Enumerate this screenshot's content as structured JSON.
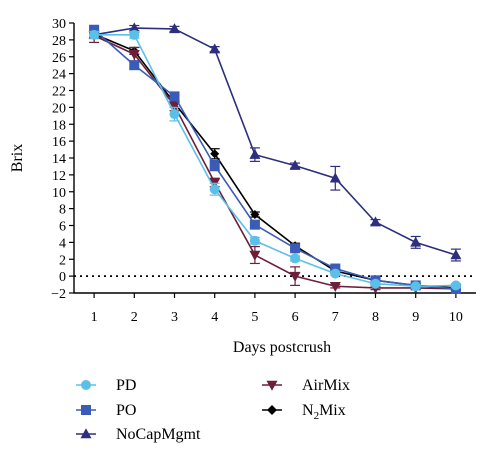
{
  "chart_data": {
    "type": "line",
    "xlabel": "Days postcrush",
    "ylabel": "Brix",
    "x": [
      1,
      2,
      3,
      4,
      5,
      6,
      7,
      8,
      9,
      10
    ],
    "xlim": [
      0.5,
      10.5
    ],
    "ylim": [
      -2,
      30
    ],
    "yticks": [
      -2,
      0,
      2,
      4,
      6,
      8,
      10,
      12,
      14,
      16,
      18,
      20,
      22,
      24,
      26,
      28,
      30
    ],
    "xticks": [
      1,
      2,
      3,
      4,
      5,
      6,
      7,
      8,
      9,
      10
    ],
    "reference_line": {
      "y": 0,
      "style": "dotted"
    },
    "grid": false,
    "legend_position": "bottom",
    "series": [
      {
        "name": "PD",
        "color": "#5bc0e8",
        "marker": "circle",
        "values": [
          28.6,
          28.6,
          19.2,
          10.3,
          4.2,
          2.1,
          0.3,
          -0.9,
          -1.2,
          -1.1
        ],
        "errors": [
          0.4,
          0.4,
          0.8,
          0.7,
          0.4,
          0.3,
          0.2,
          0.2,
          0.2,
          0.2
        ]
      },
      {
        "name": "PO",
        "color": "#3a5bb7",
        "marker": "square",
        "values": [
          29.2,
          25.0,
          21.3,
          13.1,
          6.1,
          3.3,
          0.9,
          -0.5,
          -1.1,
          -1.5
        ],
        "errors": [
          0.4,
          0.4,
          0.5,
          0.6,
          0.4,
          0.3,
          0.3,
          0.2,
          0.2,
          0.2
        ]
      },
      {
        "name": "NoCapMgmt",
        "color": "#2d2f7e",
        "marker": "triangle-up",
        "values": [
          28.6,
          29.4,
          29.3,
          26.9,
          14.4,
          13.1,
          11.6,
          6.4,
          4.0,
          2.5
        ],
        "errors": [
          0.3,
          0.3,
          0.3,
          0.3,
          0.8,
          0.3,
          1.4,
          0.3,
          0.7,
          0.7
        ]
      },
      {
        "name": "AirMix",
        "color": "#6e1e3a",
        "marker": "triangle-down",
        "values": [
          28.5,
          26.3,
          20.2,
          11.1,
          2.5,
          0.0,
          -1.2,
          -1.4,
          -1.4,
          -1.5
        ],
        "errors": [
          0.8,
          0.8,
          0.6,
          0.5,
          1.0,
          1.1,
          0.2,
          0.2,
          0.2,
          0.2
        ]
      },
      {
        "name": "N₂Mix",
        "color": "#000000",
        "marker": "diamond",
        "values": [
          28.7,
          26.7,
          20.5,
          14.5,
          7.3,
          3.6,
          0.6,
          -0.5,
          -1.1,
          -1.4
        ],
        "errors": [
          0.4,
          0.4,
          0.5,
          0.6,
          0.3,
          0.3,
          0.2,
          0.2,
          0.2,
          0.2
        ]
      }
    ]
  }
}
